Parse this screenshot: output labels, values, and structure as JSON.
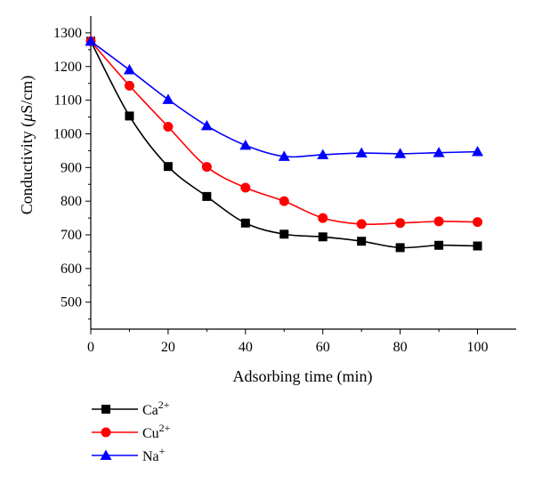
{
  "chart_data": {
    "type": "line",
    "title": "",
    "xlabel": "Adsorbing time (min)",
    "ylabel": "Conductivity (μS/cm)",
    "ylabel_parts": [
      "Conductivity (",
      "μ",
      "S/cm)"
    ],
    "xlim": [
      0,
      110
    ],
    "ylim": [
      420,
      1350
    ],
    "x_ticks": [
      0,
      20,
      40,
      60,
      80,
      100
    ],
    "y_ticks": [
      500,
      600,
      700,
      800,
      900,
      1000,
      1100,
      1200,
      1300
    ],
    "grid": false,
    "legend_position": "bottom-left, below the plot",
    "x": [
      0,
      10,
      20,
      30,
      40,
      50,
      60,
      70,
      80,
      90,
      100
    ],
    "series": [
      {
        "name": "Ca2+",
        "label_base": "Ca",
        "label_sup": "2+",
        "color": "#000000",
        "marker": "square",
        "values": [
          1275,
          1053,
          903,
          814,
          735,
          702,
          694,
          681,
          662,
          669,
          667
        ]
      },
      {
        "name": "Cu2+",
        "label_base": "Cu",
        "label_sup": "2+",
        "color": "#ff0000",
        "marker": "circle",
        "values": [
          1275,
          1143,
          1021,
          902,
          840,
          800,
          750,
          732,
          735,
          740,
          738
        ]
      },
      {
        "name": "Na+",
        "label_base": "Na",
        "label_sup": "+",
        "color": "#0000ff",
        "marker": "triangle",
        "values": [
          1275,
          1190,
          1102,
          1024,
          966,
          933,
          938,
          943,
          941,
          944,
          947
        ]
      }
    ]
  }
}
